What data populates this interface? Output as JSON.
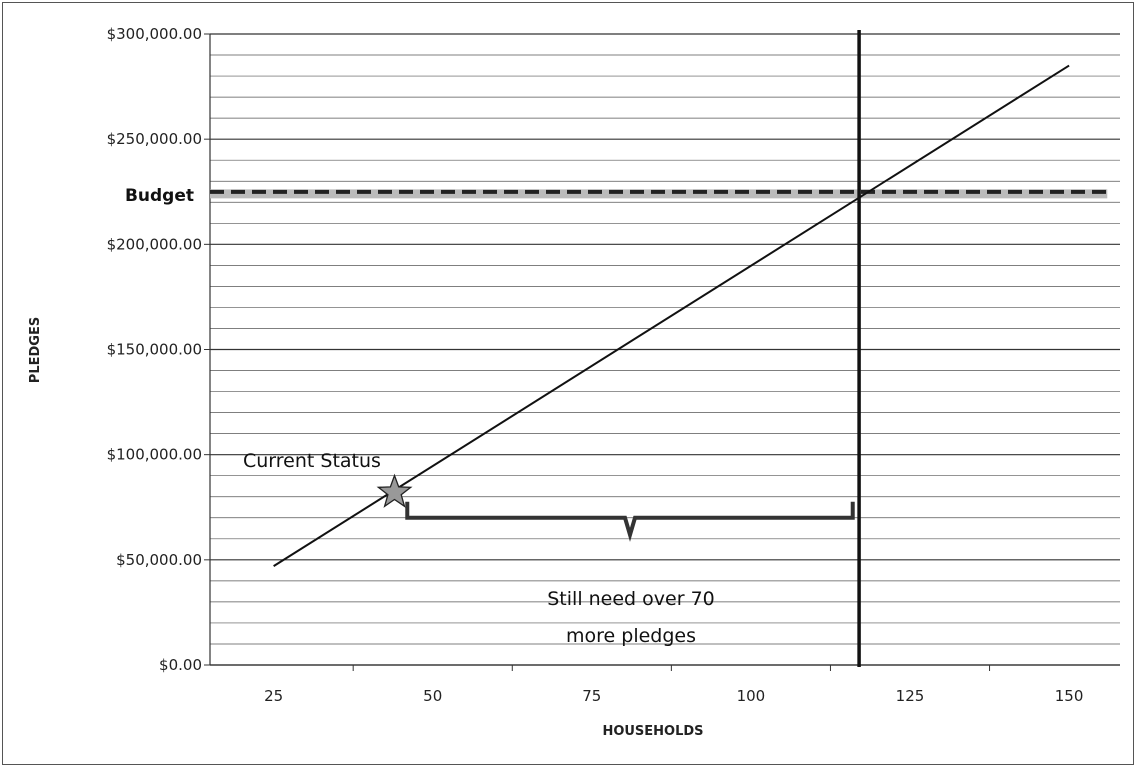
{
  "chart_data": {
    "type": "line",
    "title": "",
    "xlabel": "HOUSEHOLDS",
    "ylabel": "PLEDGES",
    "x_ticks": [
      "25",
      "50",
      "75",
      "100",
      "125",
      "150"
    ],
    "x_tick_values": [
      25,
      50,
      75,
      100,
      125,
      150
    ],
    "y_ticks": [
      "$0.00",
      "$50,000.00",
      "$100,000.00",
      "$150,000.00",
      "$200,000.00",
      "$250,000.00",
      "$300,000.00"
    ],
    "y_tick_values": [
      0,
      50000,
      100000,
      150000,
      200000,
      250000,
      300000
    ],
    "xlim": [
      15,
      158
    ],
    "ylim": [
      0,
      300000
    ],
    "grid": true,
    "series": [
      {
        "x": [
          25,
          150
        ],
        "y": [
          47000,
          285000
        ]
      }
    ],
    "budget": {
      "label": "Budget",
      "value": 224000
    },
    "vertical_marker": {
      "x": 117
    },
    "current_status": {
      "label": "Current Status",
      "x": 44,
      "y": 82000
    },
    "brace": {
      "x_start": 46,
      "x_end": 116,
      "y": 70000
    },
    "annotation": [
      "Still need over 70",
      "more pledges"
    ],
    "colors": {
      "line": "#111111",
      "grid": "#555555",
      "budget": "#222222"
    }
  }
}
